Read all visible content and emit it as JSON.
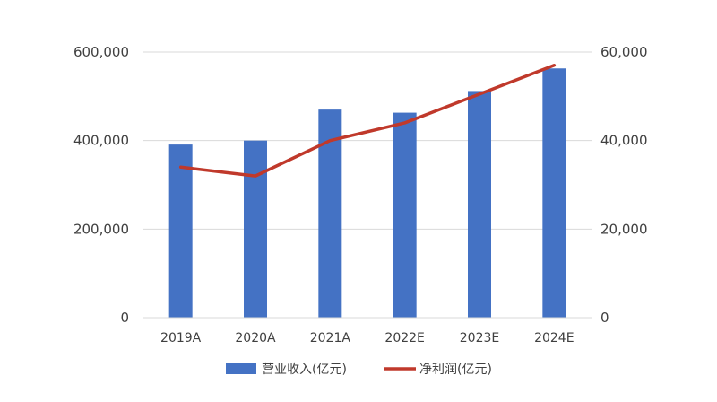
{
  "chart_data": {
    "type": "bar",
    "categories": [
      "2019A",
      "2020A",
      "2021A",
      "2022E",
      "2023E",
      "2024E"
    ],
    "series": [
      {
        "name": "营业收入(亿元)",
        "type": "bar",
        "axis": "left",
        "color": "#4472C4",
        "values": [
          391000,
          400000,
          470000,
          463000,
          512000,
          563000
        ]
      },
      {
        "name": "净利润(亿元)",
        "type": "line",
        "axis": "right",
        "color": "#C0392B",
        "values": [
          34000,
          32000,
          40000,
          44000,
          50500,
          57000
        ]
      }
    ],
    "y_left": {
      "min": 0,
      "max": 600000,
      "ticks": [
        "0",
        "200,000",
        "400,000",
        "600,000"
      ]
    },
    "y_right": {
      "min": 0,
      "max": 60000,
      "ticks": [
        "0",
        "20,000",
        "40,000",
        "60,000"
      ]
    },
    "grid": true,
    "legend_position": "bottom"
  }
}
